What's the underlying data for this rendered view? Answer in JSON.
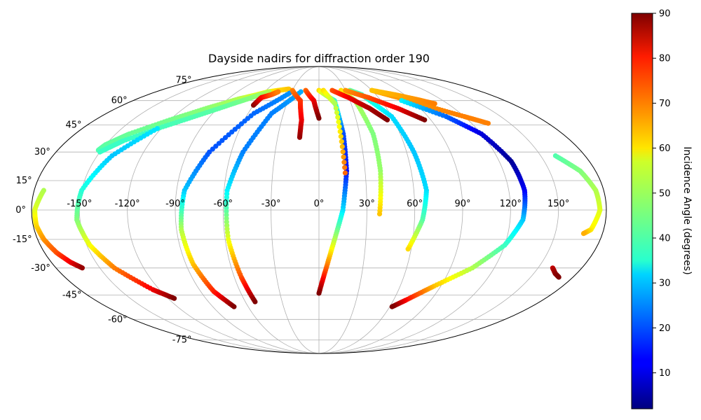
{
  "chart_data": {
    "type": "scatter",
    "projection": "mollweide",
    "title": "Dayside nadirs for diffraction order 190",
    "grid": true,
    "lon_ticks": [
      "-150°",
      "-120°",
      "-90°",
      "-60°",
      "-30°",
      "0°",
      "30°",
      "60°",
      "90°",
      "120°",
      "150°"
    ],
    "lat_ticks": [
      "75°",
      "60°",
      "45°",
      "30°",
      "15°",
      "0°",
      "-15°",
      "-30°",
      "-45°",
      "-60°",
      "-75°"
    ],
    "colorbar": {
      "label": "Incidence Angle (degrees)",
      "colormap": "jet",
      "range": [
        2,
        90
      ],
      "ticks": [
        "10",
        "20",
        "30",
        "40",
        "50",
        "60",
        "70",
        "80",
        "90"
      ],
      "placement": "right"
    },
    "series": [
      {
        "lons": [
          -152,
          -150,
          -140,
          -120,
          -100,
          -80,
          -65,
          -56,
          -46,
          -35
        ],
        "lats": [
          31,
          34,
          40,
          48,
          55,
          61,
          64,
          66,
          67,
          68
        ],
        "incidence": [
          42,
          43,
          44,
          45,
          47,
          50,
          54,
          57,
          60,
          62
        ]
      },
      {
        "lons": [
          -150,
          -140,
          -120,
          -100,
          -80,
          -65,
          -55
        ],
        "lats": [
          30,
          36,
          44,
          51,
          58,
          63,
          66
        ],
        "incidence": [
          40,
          40,
          41,
          42,
          44,
          47,
          50
        ]
      },
      {
        "lons": [
          -174,
          -178,
          -178,
          -176,
          -172,
          -167,
          -162
        ],
        "lats": [
          10,
          0,
          -8,
          -15,
          -22,
          -27,
          -30
        ],
        "incidence": [
          50,
          54,
          60,
          66,
          72,
          80,
          88
        ]
      },
      {
        "lons": [
          -123,
          -140,
          -150,
          -152,
          -148,
          -140,
          -125,
          -115
        ],
        "lats": [
          43,
          28,
          10,
          -5,
          -18,
          -30,
          -42,
          -47
        ],
        "incidence": [
          33,
          30,
          38,
          46,
          56,
          68,
          80,
          90
        ]
      },
      {
        "lons": [
          -30,
          -55,
          -75,
          -85,
          -87,
          -85,
          -80,
          -72
        ],
        "lats": [
          66,
          52,
          30,
          10,
          -10,
          -28,
          -43,
          -52
        ],
        "incidence": [
          26,
          22,
          20,
          30,
          50,
          62,
          76,
          90
        ]
      },
      {
        "lons": [
          -20,
          -40,
          -52,
          -58,
          -58,
          -55,
          -52
        ],
        "lats": [
          66,
          52,
          30,
          10,
          -15,
          -35,
          -49
        ],
        "incidence": [
          28,
          24,
          24,
          34,
          55,
          72,
          90
        ]
      },
      {
        "lons": [
          -60,
          -58,
          -50,
          -45
        ],
        "lats": [
          57,
          62,
          64,
          66
        ],
        "incidence": [
          90,
          80,
          72,
          68
        ]
      },
      {
        "lons": [
          -30,
          -18,
          -14,
          -14
        ],
        "lats": [
          67,
          60,
          48,
          38
        ],
        "incidence": [
          68,
          74,
          80,
          88
        ]
      },
      {
        "lons": [
          -15,
          -5,
          0
        ],
        "lats": [
          67,
          60,
          49
        ],
        "incidence": [
          70,
          80,
          90
        ]
      },
      {
        "lons": [
          0,
          15,
          18,
          18,
          15,
          10,
          5,
          0
        ],
        "lats": [
          67,
          60,
          40,
          20,
          0,
          -15,
          -30,
          -44
        ],
        "incidence": [
          60,
          40,
          20,
          14,
          32,
          50,
          70,
          90
        ]
      },
      {
        "lons": [
          5,
          15,
          17
        ],
        "lats": [
          67,
          58,
          19
        ],
        "incidence": [
          60,
          50,
          70
        ]
      },
      {
        "lons": [
          25,
          35,
          40,
          40,
          38
        ],
        "lats": [
          67,
          60,
          40,
          20,
          -2
        ],
        "incidence": [
          60,
          50,
          46,
          48,
          62
        ]
      },
      {
        "lons": [
          35,
          45,
          60,
          65,
          68,
          65,
          58
        ],
        "lats": [
          67,
          64,
          50,
          30,
          10,
          -5,
          -20
        ],
        "incidence": [
          45,
          40,
          32,
          30,
          32,
          42,
          60
        ]
      },
      {
        "lons": [
          15,
          30,
          45,
          55
        ],
        "lats": [
          67,
          62,
          55,
          48
        ],
        "incidence": [
          72,
          80,
          86,
          90
        ]
      },
      {
        "lons": [
          30,
          50,
          70,
          85
        ],
        "lats": [
          67,
          62,
          55,
          48
        ],
        "incidence": [
          66,
          72,
          80,
          90
        ]
      },
      {
        "lons": [
          60,
          80,
          100,
          120,
          133
        ],
        "lats": [
          67,
          62,
          56,
          50,
          46
        ],
        "incidence": [
          64,
          66,
          67,
          68,
          68
        ]
      },
      {
        "lons": [
          60,
          80,
          95,
          108
        ],
        "lats": [
          67,
          64,
          61,
          58
        ],
        "incidence": [
          62,
          64,
          66,
          68
        ]
      },
      {
        "lons": [
          80,
          105,
          120,
          128,
          130,
          128,
          120,
          105,
          85,
          70,
          62
        ],
        "lats": [
          60,
          50,
          40,
          25,
          10,
          -5,
          -18,
          -30,
          -40,
          -48,
          -52
        ],
        "incidence": [
          34,
          22,
          10,
          4,
          12,
          30,
          40,
          50,
          62,
          78,
          90
        ]
      },
      {
        "lons": [
          160,
          170,
          175,
          176,
          172,
          168
        ],
        "lats": [
          28,
          20,
          10,
          0,
          -10,
          -12
        ],
        "incidence": [
          42,
          46,
          50,
          54,
          58,
          64
        ]
      },
      {
        "lons": [
          160,
          165,
          170
        ],
        "lats": [
          -30,
          -33,
          -35
        ],
        "incidence": [
          84,
          88,
          90
        ]
      }
    ]
  }
}
